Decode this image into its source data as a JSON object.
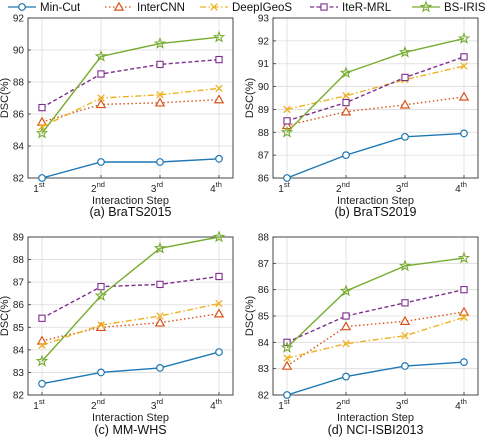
{
  "legend": {
    "placement": "top",
    "entries": [
      "Min-Cut",
      "InterCNN",
      "DeepIGeoS",
      "IteR-MRL",
      "BS-IRIS"
    ]
  },
  "series_styles": [
    {
      "name": "Min-Cut",
      "color": "#1f77b4",
      "marker": "circle",
      "dash": "solid"
    },
    {
      "name": "InterCNN",
      "color": "#d95319",
      "marker": "triangle",
      "dash": "dotted"
    },
    {
      "name": "DeepIGeoS",
      "color": "#edb120",
      "marker": "x",
      "dash": "dashdot"
    },
    {
      "name": "IteR-MRL",
      "color": "#7e2f8e",
      "marker": "square",
      "dash": "dashed"
    },
    {
      "name": "BS-IRIS",
      "color": "#77ac30",
      "marker": "star",
      "dash": "solid"
    }
  ],
  "chart_data": [
    {
      "type": "line",
      "caption": "(a) BraTS2015",
      "xlabel": "Interaction Step",
      "ylabel": "DSC(%)",
      "categories": [
        {
          "n": "1",
          "sup": "st"
        },
        {
          "n": "2",
          "sup": "nd"
        },
        {
          "n": "3",
          "sup": "rd"
        },
        {
          "n": "4",
          "sup": "th"
        }
      ],
      "ylim": [
        82,
        92
      ],
      "yticks": [
        82,
        84,
        86,
        88,
        90,
        92
      ],
      "grid": true,
      "series": [
        {
          "name": "Min-Cut",
          "values": [
            82.0,
            83.0,
            83.0,
            83.2
          ]
        },
        {
          "name": "InterCNN",
          "values": [
            85.5,
            86.6,
            86.7,
            86.9
          ]
        },
        {
          "name": "DeepIGeoS",
          "values": [
            85.2,
            87.0,
            87.2,
            87.6
          ]
        },
        {
          "name": "IteR-MRL",
          "values": [
            86.4,
            88.5,
            89.1,
            89.4
          ]
        },
        {
          "name": "BS-IRIS",
          "values": [
            84.8,
            89.6,
            90.4,
            90.8
          ]
        }
      ]
    },
    {
      "type": "line",
      "caption": "(b) BraTS2019",
      "xlabel": "Interaction Step",
      "ylabel": "DSC(%)",
      "categories": [
        {
          "n": "1",
          "sup": "st"
        },
        {
          "n": "2",
          "sup": "nd"
        },
        {
          "n": "3",
          "sup": "rd"
        },
        {
          "n": "4",
          "sup": "th"
        }
      ],
      "ylim": [
        86,
        93
      ],
      "yticks": [
        86,
        87,
        88,
        89,
        90,
        91,
        92,
        93
      ],
      "grid": true,
      "series": [
        {
          "name": "Min-Cut",
          "values": [
            86.0,
            87.0,
            87.8,
            87.95
          ]
        },
        {
          "name": "InterCNN",
          "values": [
            88.3,
            88.9,
            89.2,
            89.55
          ]
        },
        {
          "name": "DeepIGeoS",
          "values": [
            89.0,
            89.6,
            90.3,
            90.9
          ]
        },
        {
          "name": "IteR-MRL",
          "values": [
            88.5,
            89.3,
            90.4,
            91.3
          ]
        },
        {
          "name": "BS-IRIS",
          "values": [
            88.0,
            90.6,
            91.5,
            92.1
          ]
        }
      ]
    },
    {
      "type": "line",
      "caption": "(c) MM-WHS",
      "xlabel": "Interaction Step",
      "ylabel": "DSC(%)",
      "categories": [
        {
          "n": "1",
          "sup": "st"
        },
        {
          "n": "2",
          "sup": "nd"
        },
        {
          "n": "3",
          "sup": "rd"
        },
        {
          "n": "4",
          "sup": "th"
        }
      ],
      "ylim": [
        82,
        89
      ],
      "yticks": [
        82,
        83,
        84,
        85,
        86,
        87,
        88,
        89
      ],
      "grid": true,
      "series": [
        {
          "name": "Min-Cut",
          "values": [
            82.5,
            83.0,
            83.2,
            83.9
          ]
        },
        {
          "name": "InterCNN",
          "values": [
            84.4,
            85.0,
            85.2,
            85.6
          ]
        },
        {
          "name": "DeepIGeoS",
          "values": [
            84.2,
            85.1,
            85.5,
            86.05
          ]
        },
        {
          "name": "IteR-MRL",
          "values": [
            85.4,
            86.8,
            86.9,
            87.25
          ]
        },
        {
          "name": "BS-IRIS",
          "values": [
            83.5,
            86.4,
            88.5,
            89.0
          ]
        }
      ]
    },
    {
      "type": "line",
      "caption": "(d) NCI-ISBI2013",
      "xlabel": "Interaction Step",
      "ylabel": "DSC(%)",
      "categories": [
        {
          "n": "1",
          "sup": "st"
        },
        {
          "n": "2",
          "sup": "nd"
        },
        {
          "n": "3",
          "sup": "rd"
        },
        {
          "n": "4",
          "sup": "th"
        }
      ],
      "ylim": [
        82,
        88
      ],
      "yticks": [
        82,
        83,
        84,
        85,
        86,
        87,
        88
      ],
      "grid": true,
      "series": [
        {
          "name": "Min-Cut",
          "values": [
            82.0,
            82.7,
            83.1,
            83.25
          ]
        },
        {
          "name": "InterCNN",
          "values": [
            83.1,
            84.6,
            84.8,
            85.15
          ]
        },
        {
          "name": "DeepIGeoS",
          "values": [
            83.4,
            83.95,
            84.25,
            84.95
          ]
        },
        {
          "name": "IteR-MRL",
          "values": [
            84.0,
            85.0,
            85.5,
            86.0
          ]
        },
        {
          "name": "BS-IRIS",
          "values": [
            83.8,
            85.95,
            86.9,
            87.2
          ]
        }
      ]
    }
  ]
}
